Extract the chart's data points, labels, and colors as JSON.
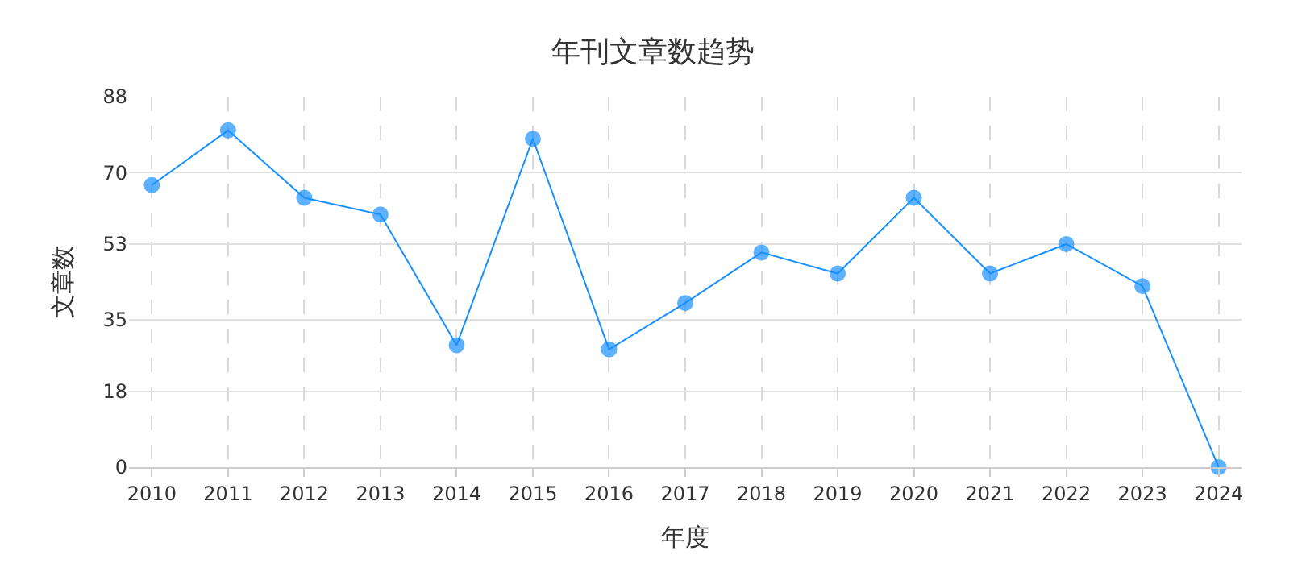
{
  "chart_data": {
    "type": "line",
    "title": "年刊文章数趋势",
    "xlabel": "年度",
    "ylabel": "文章数",
    "categories": [
      "2010",
      "2011",
      "2012",
      "2013",
      "2014",
      "2015",
      "2016",
      "2017",
      "2018",
      "2019",
      "2020",
      "2021",
      "2022",
      "2023",
      "2024"
    ],
    "series": [
      {
        "color": "#1890ff",
        "values": [
          67,
          80,
          64,
          60,
          29,
          78,
          28,
          39,
          51,
          46,
          64,
          46,
          53,
          43,
          0
        ]
      }
    ],
    "ylim": [
      0,
      88
    ],
    "yticks": [
      0,
      18,
      35,
      53,
      70,
      88
    ],
    "grid": true,
    "marker": "circle",
    "line_style": "solid"
  }
}
